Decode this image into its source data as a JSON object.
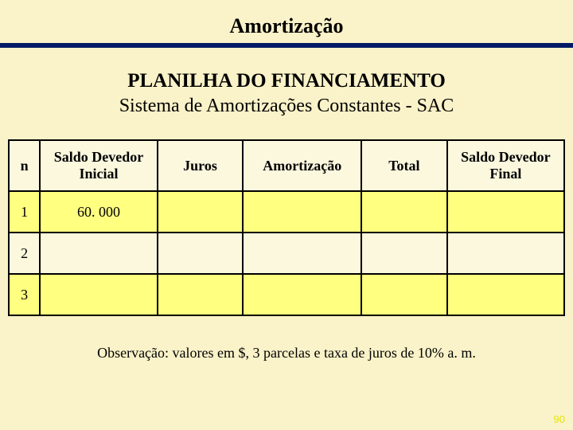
{
  "title": "Amortização",
  "heading": "PLANILHA DO FINANCIAMENTO",
  "subheading": "Sistema de Amortizações Constantes - SAC",
  "colors": {
    "slide_background": "#faf2c8",
    "title_underline": "#001a66",
    "header_row_bg": "#fbf8de",
    "alt_row_bg": "#ffff80",
    "normal_row_bg": "#fbf8de",
    "page_num_color": "#e6e600"
  },
  "table": {
    "columns": [
      "n",
      "Saldo Devedor Inicial",
      "Juros",
      "Amortização",
      "Total",
      "Saldo Devedor Final"
    ],
    "rows": [
      {
        "n": "1",
        "sdi": "60. 000",
        "juros": "",
        "amort": "",
        "total": "",
        "sdf": "",
        "alt": true
      },
      {
        "n": "2",
        "sdi": "",
        "juros": "",
        "amort": "",
        "total": "",
        "sdf": "",
        "alt": false
      },
      {
        "n": "3",
        "sdi": "",
        "juros": "",
        "amort": "",
        "total": "",
        "sdf": "",
        "alt": true
      }
    ]
  },
  "note": "Observação:  valores em $, 3 parcelas e taxa de juros de 10% a. m.",
  "page_number": "90"
}
